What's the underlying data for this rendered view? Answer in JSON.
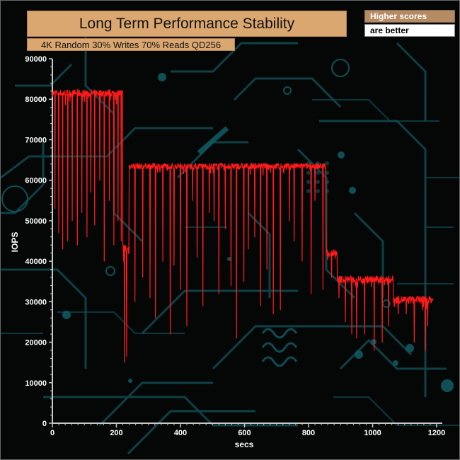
{
  "header": {
    "title": "Long Term Performance Stability",
    "subtitle": "4K Random 30% Writes 70% Reads QD256",
    "note_line1": "Higher scores",
    "note_line2": "are better"
  },
  "colors": {
    "series": "#ff1a1a",
    "axis": "#c8c8c8",
    "background": "#050707",
    "circuit": "#114a52",
    "title_box": "#dba770"
  },
  "chart_data": {
    "type": "line",
    "title": "Long Term Performance Stability",
    "subtitle": "4K Random 30% Writes 70% Reads QD256",
    "xlabel": "secs",
    "ylabel": "IOPS",
    "xlim": [
      0,
      1200
    ],
    "ylim": [
      0,
      90000
    ],
    "xticks": [
      0,
      200,
      400,
      600,
      800,
      1000,
      1200
    ],
    "yticks": [
      0,
      10000,
      20000,
      30000,
      40000,
      50000,
      60000,
      70000,
      80000,
      90000
    ],
    "grid": false,
    "legend": "none",
    "series": [
      {
        "color": "#ff1a1a",
        "phases": [
          {
            "x_start": 0,
            "x_end": 220,
            "level": 81500,
            "noise": 900
          },
          {
            "x_start": 220,
            "x_end": 240,
            "level": 43000,
            "noise": 1500
          },
          {
            "x_start": 240,
            "x_end": 855,
            "level": 63500,
            "noise": 700
          },
          {
            "x_start": 855,
            "x_end": 890,
            "level": 42000,
            "noise": 1000
          },
          {
            "x_start": 890,
            "x_end": 1065,
            "level": 35500,
            "noise": 900
          },
          {
            "x_start": 1065,
            "x_end": 1190,
            "level": 30500,
            "noise": 900
          }
        ],
        "dips": [
          {
            "x": 8,
            "y": 53000
          },
          {
            "x": 20,
            "y": 47000
          },
          {
            "x": 32,
            "y": 43000
          },
          {
            "x": 48,
            "y": 45000
          },
          {
            "x": 62,
            "y": 50000
          },
          {
            "x": 78,
            "y": 44000
          },
          {
            "x": 92,
            "y": 52000
          },
          {
            "x": 108,
            "y": 46000
          },
          {
            "x": 120,
            "y": 57000
          },
          {
            "x": 132,
            "y": 49000
          },
          {
            "x": 148,
            "y": 60000
          },
          {
            "x": 162,
            "y": 40000
          },
          {
            "x": 178,
            "y": 55000
          },
          {
            "x": 192,
            "y": 44000
          },
          {
            "x": 205,
            "y": 50000
          },
          {
            "x": 215,
            "y": 45000
          },
          {
            "x": 225,
            "y": 15000
          },
          {
            "x": 232,
            "y": 16500
          },
          {
            "x": 258,
            "y": 30000
          },
          {
            "x": 282,
            "y": 36000
          },
          {
            "x": 305,
            "y": 31000
          },
          {
            "x": 322,
            "y": 26000
          },
          {
            "x": 345,
            "y": 40000
          },
          {
            "x": 368,
            "y": 22000
          },
          {
            "x": 380,
            "y": 39000
          },
          {
            "x": 400,
            "y": 33000
          },
          {
            "x": 420,
            "y": 24000
          },
          {
            "x": 438,
            "y": 55000
          },
          {
            "x": 452,
            "y": 41000
          },
          {
            "x": 470,
            "y": 29000
          },
          {
            "x": 490,
            "y": 52000
          },
          {
            "x": 505,
            "y": 50000
          },
          {
            "x": 520,
            "y": 32000
          },
          {
            "x": 540,
            "y": 48000
          },
          {
            "x": 558,
            "y": 34000
          },
          {
            "x": 575,
            "y": 21000
          },
          {
            "x": 598,
            "y": 35000
          },
          {
            "x": 612,
            "y": 43000
          },
          {
            "x": 632,
            "y": 46000
          },
          {
            "x": 650,
            "y": 29000
          },
          {
            "x": 670,
            "y": 38000
          },
          {
            "x": 690,
            "y": 27000
          },
          {
            "x": 712,
            "y": 28000
          },
          {
            "x": 740,
            "y": 50000
          },
          {
            "x": 755,
            "y": 45000
          },
          {
            "x": 780,
            "y": 40000
          },
          {
            "x": 808,
            "y": 32000
          },
          {
            "x": 820,
            "y": 55000
          },
          {
            "x": 845,
            "y": 33000
          },
          {
            "x": 855,
            "y": 47000
          },
          {
            "x": 872,
            "y": 36000
          },
          {
            "x": 895,
            "y": 31000
          },
          {
            "x": 915,
            "y": 25000
          },
          {
            "x": 935,
            "y": 22000
          },
          {
            "x": 950,
            "y": 21000
          },
          {
            "x": 975,
            "y": 22000
          },
          {
            "x": 1005,
            "y": 18000
          },
          {
            "x": 1030,
            "y": 20000
          },
          {
            "x": 1050,
            "y": 24000
          },
          {
            "x": 1080,
            "y": 27000
          },
          {
            "x": 1105,
            "y": 27000
          },
          {
            "x": 1130,
            "y": 20000
          },
          {
            "x": 1155,
            "y": 28000
          },
          {
            "x": 1165,
            "y": 18000
          },
          {
            "x": 1172,
            "y": 24000
          }
        ]
      }
    ]
  }
}
